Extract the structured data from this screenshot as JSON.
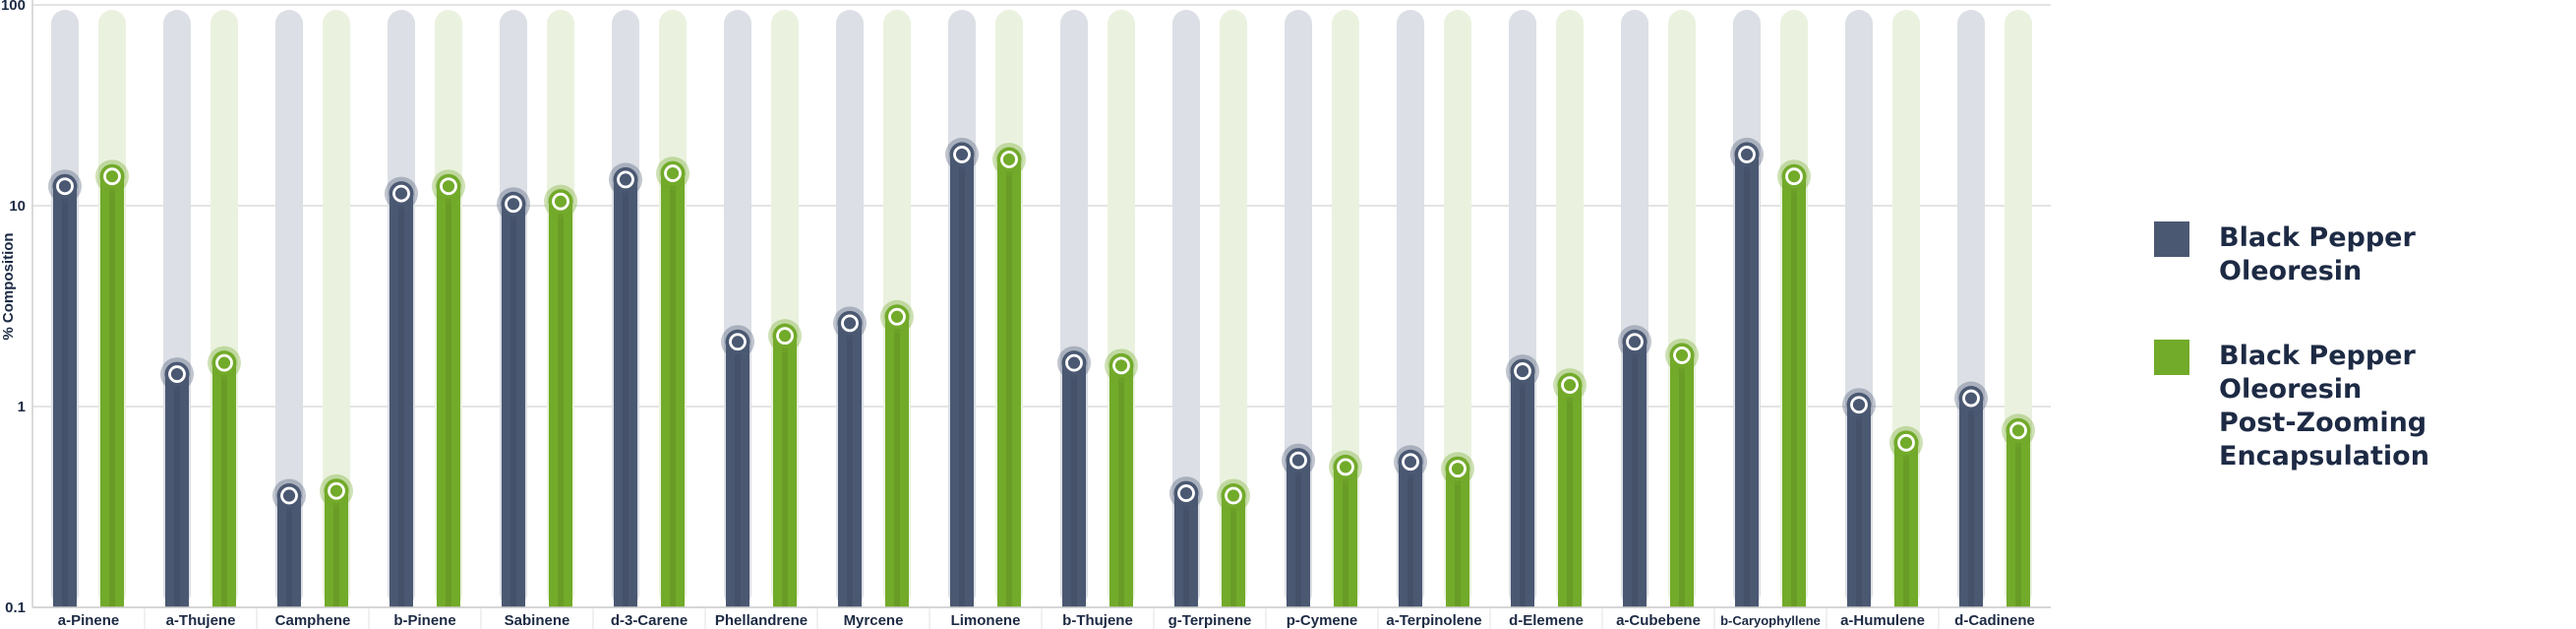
{
  "chart_data": {
    "type": "bar",
    "ylabel": "% Composition",
    "yscale": "log",
    "ylim": [
      0.1,
      100
    ],
    "yticks": [
      "0.1",
      "1",
      "10",
      "100"
    ],
    "grid": true,
    "legend_position": "right",
    "categories": [
      "a-Pinene",
      "a-Thujene",
      "Camphene",
      "b-Pinene",
      "Sabinene",
      "d-3-Carene",
      "Phellandrene",
      "Myrcene",
      "Limonene",
      "b-Thujene",
      "g-Terpinene",
      "p-Cymene",
      "a-Terpinolene",
      "d-Elemene",
      "a-Cubebene",
      "b-Caryophyllene",
      "a-Humulene",
      "d-Cadinene"
    ],
    "series": [
      {
        "name": "Black Pepper Oleoresin",
        "color": "#4b5872",
        "track_color": "#dcdfe5",
        "values": [
          12.5,
          1.45,
          0.36,
          11.5,
          10.2,
          13.5,
          2.1,
          2.6,
          18.0,
          1.65,
          0.37,
          0.54,
          0.53,
          1.5,
          2.1,
          18.0,
          1.02,
          1.1
        ]
      },
      {
        "name": "Black Pepper Oleoresin\nPost-Zooming\nEncapsulation",
        "color": "#72aa2a",
        "track_color": "#eaf2df",
        "values": [
          14.0,
          1.65,
          0.38,
          12.5,
          10.5,
          14.5,
          2.25,
          2.8,
          17.0,
          1.6,
          0.36,
          0.5,
          0.49,
          1.28,
          1.8,
          14.0,
          0.66,
          0.76
        ]
      }
    ]
  }
}
